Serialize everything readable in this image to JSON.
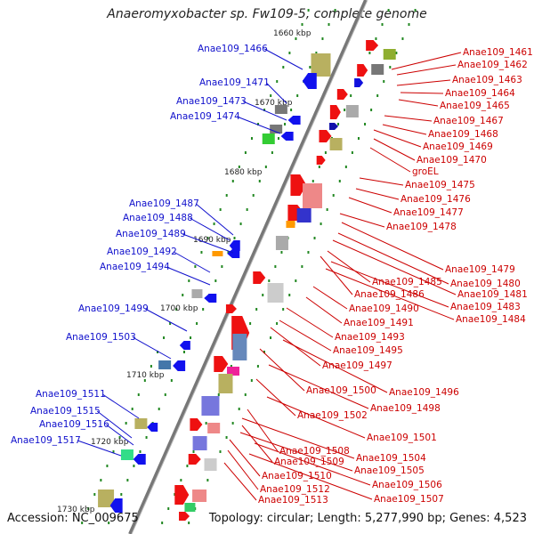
{
  "title": "Anaeromyxobacter sp. Fw109-5, complete genome",
  "footer": {
    "accession": "Accession: NC_009675",
    "summary": "Topology: circular; Length: 5,277,990 bp; Genes: 4,523"
  },
  "colors": {
    "backbone": "#888888",
    "forward_gene": "#ee0000",
    "reverse_gene": "#0000ee",
    "left_label": "#1010cc",
    "right_label": "#cc0000",
    "tick": "#228822"
  },
  "kbp_labels": [
    "1660 kbp",
    "1670 kbp",
    "1680 kbp",
    "1690 kbp",
    "1700 kbp",
    "1710 kbp",
    "1720 kbp",
    "1730 kbp"
  ],
  "left_genes": [
    {
      "label": "Anae109_1466"
    },
    {
      "label": "Anae109_1471"
    },
    {
      "label": "Anae109_1473"
    },
    {
      "label": "Anae109_1474"
    },
    {
      "label": "Anae109_1487"
    },
    {
      "label": "Anae109_1488"
    },
    {
      "label": "Anae109_1489"
    },
    {
      "label": "Anae109_1492"
    },
    {
      "label": "Anae109_1494"
    },
    {
      "label": "Anae109_1499"
    },
    {
      "label": "Anae109_1503"
    },
    {
      "label": "Anae109_1511"
    },
    {
      "label": "Anae109_1515"
    },
    {
      "label": "Anae109_1516"
    },
    {
      "label": "Anae109_1517"
    }
  ],
  "right_genes": [
    {
      "label": "Anae109_1461"
    },
    {
      "label": "Anae109_1462"
    },
    {
      "label": "Anae109_1463"
    },
    {
      "label": "Anae109_1464"
    },
    {
      "label": "Anae109_1465"
    },
    {
      "label": "Anae109_1467"
    },
    {
      "label": "Anae109_1468"
    },
    {
      "label": "Anae109_1469"
    },
    {
      "label": "Anae109_1470"
    },
    {
      "label": "groEL"
    },
    {
      "label": "Anae109_1475"
    },
    {
      "label": "Anae109_1476"
    },
    {
      "label": "Anae109_1477"
    },
    {
      "label": "Anae109_1478"
    },
    {
      "label": "Anae109_1479"
    },
    {
      "label": "Anae109_1480"
    },
    {
      "label": "Anae109_1481"
    },
    {
      "label": "Anae109_1485"
    },
    {
      "label": "Anae109_1486"
    },
    {
      "label": "Anae109_1483"
    },
    {
      "label": "Anae109_1484"
    },
    {
      "label": "Anae109_1490"
    },
    {
      "label": "Anae109_1491"
    },
    {
      "label": "Anae109_1493"
    },
    {
      "label": "Anae109_1495"
    },
    {
      "label": "Anae109_1497"
    },
    {
      "label": "Anae109_1496"
    },
    {
      "label": "Anae109_1500"
    },
    {
      "label": "Anae109_1498"
    },
    {
      "label": "Anae109_1502"
    },
    {
      "label": "Anae109_1501"
    },
    {
      "label": "Anae109_1508"
    },
    {
      "label": "Anae109_1504"
    },
    {
      "label": "Anae109_1509"
    },
    {
      "label": "Anae109_1505"
    },
    {
      "label": "Anae109_1510"
    },
    {
      "label": "Anae109_1506"
    },
    {
      "label": "Anae109_1512"
    },
    {
      "label": "Anae109_1507"
    },
    {
      "label": "Anae109_1513"
    }
  ]
}
